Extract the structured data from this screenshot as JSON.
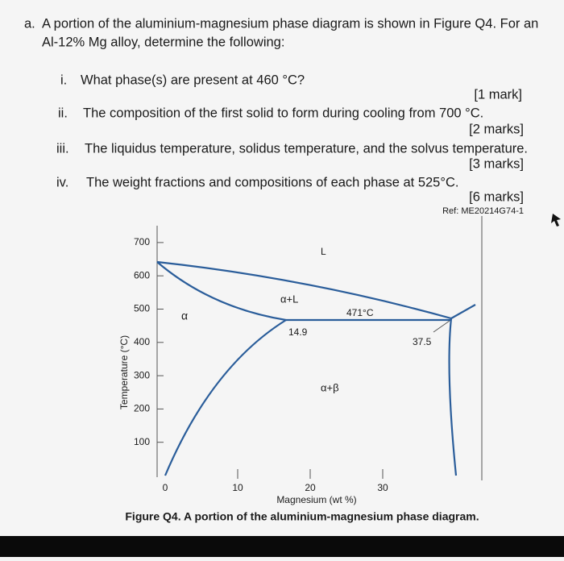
{
  "question": {
    "label": "a.",
    "lines": [
      "A portion of the aluminium-magnesium phase diagram is shown in Figure Q4. For an",
      "Al-12% Mg alloy, determine the following:"
    ],
    "items": [
      {
        "label": "i.",
        "text": "What phase(s) are present at 460 °C?",
        "marks": "[1 mark]"
      },
      {
        "label": "ii.",
        "text": "The composition of the first solid to form during cooling from 700 °C.",
        "marks": "[2 marks]"
      },
      {
        "label": "iii.",
        "text": "The liquidus temperature, solidus temperature, and the solvus temperature.",
        "marks": "[3 marks]"
      },
      {
        "label": "iv.",
        "text": "The weight fractions and compositions of each phase at 525°C.",
        "marks": "[6 marks]"
      }
    ]
  },
  "reference": "Ref: ME20214G74-1",
  "figure": {
    "y_label": "Temperature (°C)",
    "x_label": "Magnesium (wt %)",
    "yticks": [
      700,
      600,
      500,
      400,
      300,
      200,
      100
    ],
    "xticks": [
      0,
      10,
      20,
      30
    ],
    "annotations": [
      "α",
      "α+L",
      "L",
      "471°C",
      "14.9",
      "37.5",
      "α+β"
    ],
    "caption": "Figure Q4. A portion of the aluminium-magnesium phase diagram."
  }
}
